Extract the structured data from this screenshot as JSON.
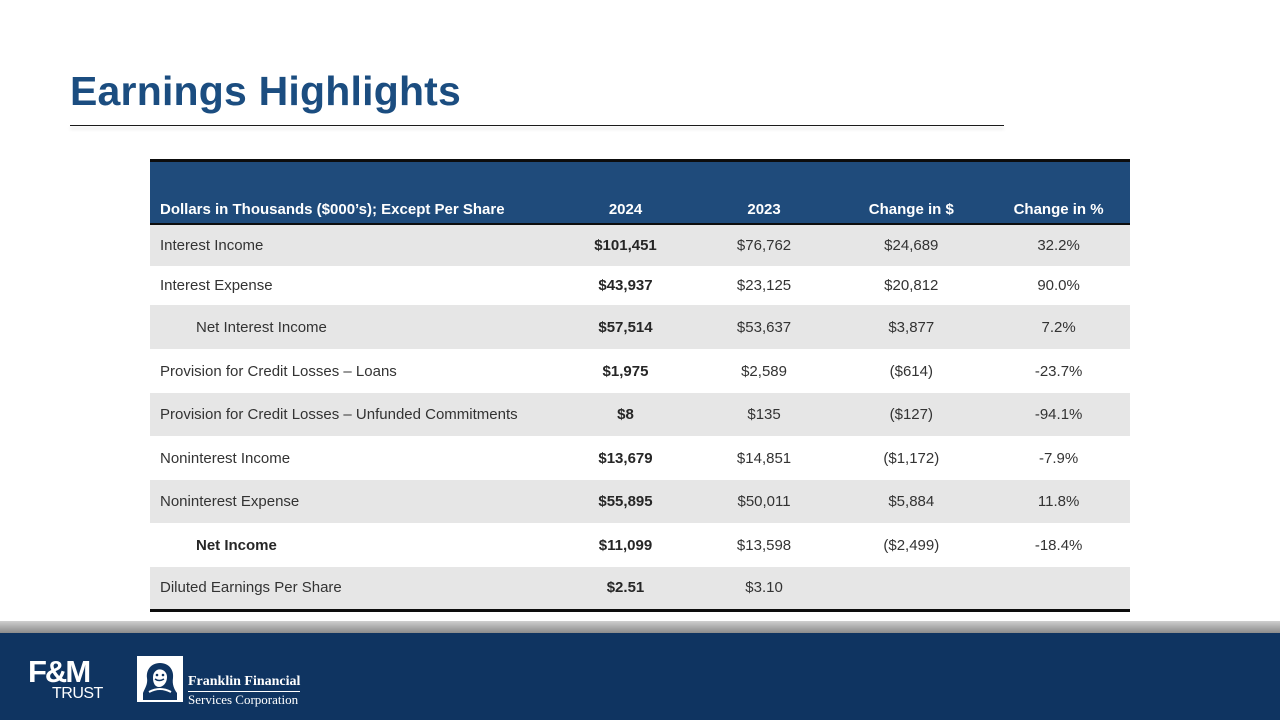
{
  "title": "Earnings Highlights",
  "table": {
    "headers": [
      "Dollars in Thousands ($000’s); Except Per Share",
      "2024",
      "2023",
      "Change in $",
      "Change in %"
    ],
    "rows": [
      {
        "label": "Interest Income",
        "y2024": "$101,451",
        "y2023": "$76,762",
        "chg_dollar": "$24,689",
        "chg_pct": "32.2%"
      },
      {
        "label": "Interest Expense",
        "y2024": "$43,937",
        "y2023": "$23,125",
        "chg_dollar": "$20,812",
        "chg_pct": "90.0%"
      },
      {
        "label": "Net Interest Income",
        "y2024": "$57,514",
        "y2023": "$53,637",
        "chg_dollar": "$3,877",
        "chg_pct": "7.2%"
      },
      {
        "label": "Provision for Credit Losses – Loans",
        "y2024": "$1,975",
        "y2023": "$2,589",
        "chg_dollar": "($614)",
        "chg_pct": "-23.7%"
      },
      {
        "label": "Provision for Credit Losses – Unfunded Commitments",
        "y2024": "$8",
        "y2023": "$135",
        "chg_dollar": "($127)",
        "chg_pct": "-94.1%"
      },
      {
        "label": "Noninterest Income",
        "y2024": "$13,679",
        "y2023": "$14,851",
        "chg_dollar": "($1,172)",
        "chg_pct": "-7.9%"
      },
      {
        "label": "Noninterest Expense",
        "y2024": "$55,895",
        "y2023": "$50,011",
        "chg_dollar": "$5,884",
        "chg_pct": "11.8%"
      },
      {
        "label": "Net Income",
        "y2024": "$11,099",
        "y2023": "$13,598",
        "chg_dollar": "($2,499)",
        "chg_pct": "-18.4%"
      },
      {
        "label": "Diluted Earnings Per Share",
        "y2024": "$2.51",
        "y2023": "$3.10",
        "chg_dollar": "",
        "chg_pct": ""
      }
    ]
  },
  "footer": {
    "fm_logo_top": "F&M",
    "fm_logo_bottom": "TRUST",
    "ffsc_line1": "Franklin Financial",
    "ffsc_line2": "Services Corporation"
  },
  "colors": {
    "title": "#1b4d80",
    "header_bg": "#1f4b7b",
    "band": "#e6e6e6",
    "footer_bg": "#0f3461"
  }
}
